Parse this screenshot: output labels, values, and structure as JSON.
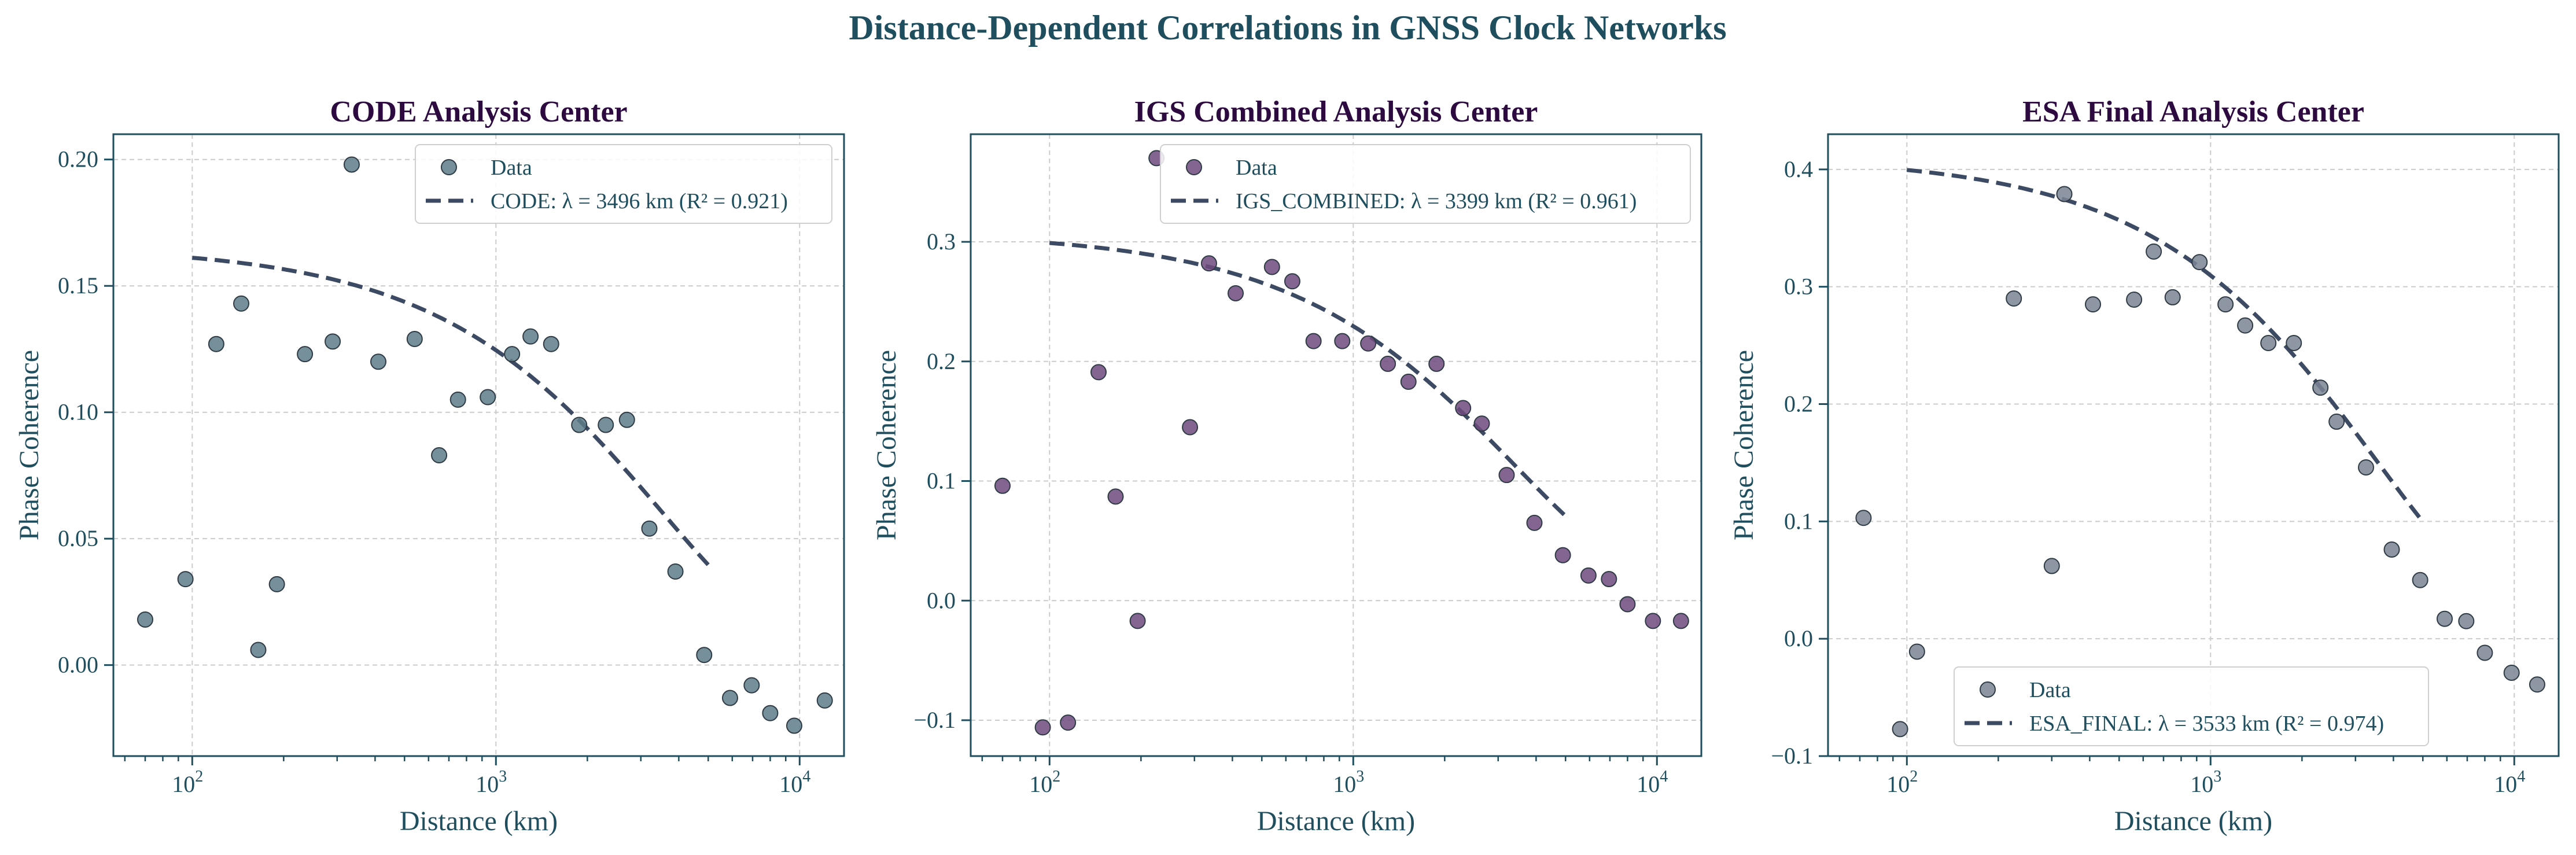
{
  "suptitle": "Distance-Dependent Correlations in GNSS Clock Networks",
  "colors": {
    "title": "#1f4e5f",
    "panel_title": "#2d0a3f",
    "axes": "#1f4e5f",
    "tick_text": "#1f4e5f",
    "fit_line": "#3d4a63",
    "grid": "#cccccc"
  },
  "chart_data": [
    {
      "type": "scatter",
      "title": "CODE Analysis Center",
      "xlabel": "Distance (km)",
      "ylabel": "Phase Coherence",
      "xscale": "log",
      "xlim": [
        55,
        14000
      ],
      "ylim": [
        -0.036,
        0.21
      ],
      "yticks": [
        "0.00",
        "0.05",
        "0.10",
        "0.15",
        "0.20"
      ],
      "ytick_values": [
        0.0,
        0.05,
        0.1,
        0.15,
        0.2
      ],
      "xtick_values": [
        100,
        1000,
        10000
      ],
      "xtick_exponents": [
        "2",
        "3",
        "4"
      ],
      "grid": true,
      "legend_position": "top-right",
      "point_color": "#5e7d8a",
      "legend": {
        "data_label": "Data",
        "fit_label": "CODE: λ = 3496 km (R² = 0.921)"
      },
      "fit": {
        "lambda_km": 3496,
        "amplitude": 0.1658,
        "x_range": [
          100,
          5000
        ]
      },
      "points": {
        "x": [
          70,
          95,
          120,
          145,
          165,
          190,
          235,
          290,
          335,
          410,
          540,
          650,
          750,
          940,
          1130,
          1300,
          1520,
          1880,
          2300,
          2700,
          3200,
          3900,
          4850,
          5900,
          6950,
          8000,
          9600,
          12100
        ],
        "y": [
          0.018,
          0.034,
          0.127,
          0.143,
          0.006,
          0.032,
          0.123,
          0.128,
          0.198,
          0.12,
          0.129,
          0.083,
          0.105,
          0.106,
          0.123,
          0.13,
          0.127,
          0.095,
          0.095,
          0.097,
          0.054,
          0.037,
          0.004,
          -0.013,
          -0.008,
          -0.019,
          -0.024,
          -0.014
        ]
      }
    },
    {
      "type": "scatter",
      "title": "IGS Combined Analysis Center",
      "xlabel": "Distance (km)",
      "ylabel": "Phase Coherence",
      "xscale": "log",
      "xlim": [
        55,
        14000
      ],
      "ylim": [
        -0.13,
        0.39
      ],
      "yticks": [
        "−0.1",
        "0.0",
        "0.1",
        "0.2",
        "0.3"
      ],
      "ytick_values": [
        -0.1,
        0.0,
        0.1,
        0.2,
        0.3
      ],
      "xtick_values": [
        100,
        1000,
        10000
      ],
      "xtick_exponents": [
        "2",
        "3",
        "4"
      ],
      "grid": true,
      "legend_position": "top-right",
      "point_color": "#6e4a7e",
      "legend": {
        "data_label": "Data",
        "fit_label": "IGS_COMBINED: λ = 3399 km (R² = 0.961)"
      },
      "fit": {
        "lambda_km": 3399,
        "amplitude": 0.308,
        "x_range": [
          100,
          5000
        ]
      },
      "points": {
        "x": [
          70,
          95,
          115,
          145,
          165,
          195,
          225,
          290,
          335,
          410,
          540,
          630,
          740,
          920,
          1120,
          1300,
          1520,
          1880,
          2300,
          2650,
          3200,
          3950,
          4900,
          5950,
          6950,
          8000,
          9700,
          12000
        ],
        "y": [
          0.096,
          -0.106,
          -0.102,
          0.191,
          0.087,
          -0.017,
          0.37,
          0.145,
          0.282,
          0.257,
          0.279,
          0.267,
          0.217,
          0.217,
          0.215,
          0.198,
          0.183,
          0.198,
          0.161,
          0.148,
          0.105,
          0.065,
          0.038,
          0.021,
          0.018,
          -0.003,
          -0.017,
          -0.017
        ]
      }
    },
    {
      "type": "scatter",
      "title": "ESA Final Analysis Center",
      "xlabel": "Distance (km)",
      "ylabel": "Phase Coherence",
      "xscale": "log",
      "xlim": [
        55,
        14000
      ],
      "ylim": [
        -0.1,
        0.43
      ],
      "yticks": [
        "−0.1",
        "0.0",
        "0.1",
        "0.2",
        "0.3",
        "0.4"
      ],
      "ytick_values": [
        -0.1,
        0.0,
        0.1,
        0.2,
        0.3,
        0.4
      ],
      "xtick_values": [
        100,
        1000,
        10000
      ],
      "xtick_exponents": [
        "2",
        "3",
        "4"
      ],
      "grid": true,
      "legend_position": "lower-center",
      "point_color": "#7a8494",
      "legend": {
        "data_label": "Data",
        "fit_label": "ESA_FINAL: λ = 3533 km (R² = 0.974)"
      },
      "fit": {
        "lambda_km": 3533,
        "amplitude": 0.411,
        "x_range": [
          100,
          5000
        ]
      },
      "points": {
        "x": [
          72,
          95,
          108,
          225,
          300,
          330,
          410,
          560,
          650,
          750,
          920,
          1120,
          1300,
          1550,
          1880,
          2300,
          2600,
          3250,
          3950,
          4900,
          5900,
          6950,
          8000,
          9800,
          11900
        ],
        "y": [
          0.103,
          -0.077,
          -0.011,
          0.29,
          0.062,
          0.379,
          0.285,
          0.289,
          0.33,
          0.291,
          0.321,
          0.285,
          0.267,
          0.252,
          0.252,
          0.214,
          0.185,
          0.146,
          0.076,
          0.05,
          0.017,
          0.015,
          -0.012,
          -0.029,
          -0.039
        ]
      }
    }
  ]
}
